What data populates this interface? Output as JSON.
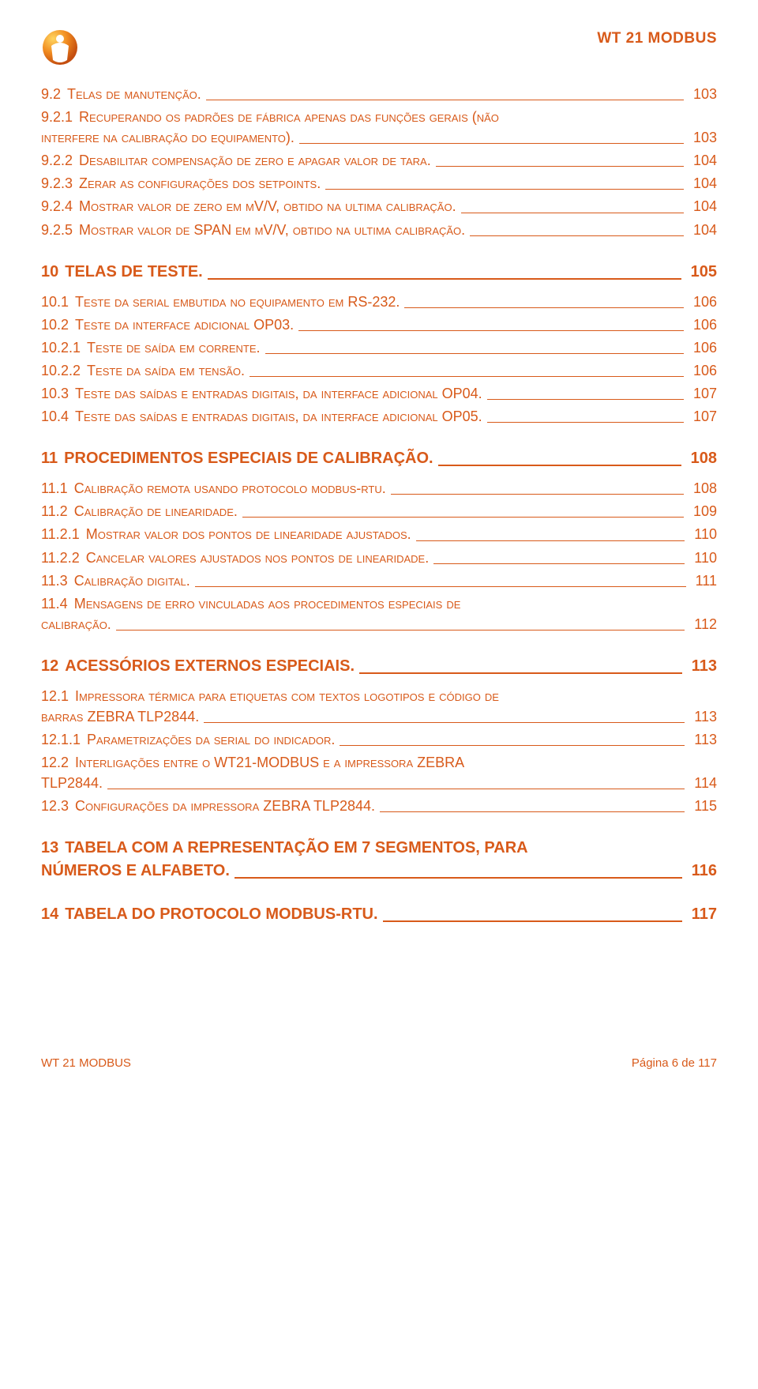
{
  "colors": {
    "accent": "#d85a1a",
    "background": "#ffffff",
    "logo_highlight": "#ffd560",
    "logo_body": "#f08a1f",
    "logo_shadow": "#c44e10"
  },
  "typography": {
    "body_font": "Arial",
    "body_size_pt": 13,
    "section_size_pt": 15,
    "header_size_pt": 14
  },
  "header": {
    "doc_title": "WT 21 MODBUS"
  },
  "toc": [
    {
      "type": "item",
      "num": "9.2",
      "title": "Telas de manutenção.",
      "page": "103"
    },
    {
      "type": "wrap",
      "num": "9.2.1",
      "title_line1": "Recuperando os padrões de fábrica apenas das funções gerais (não",
      "title_line2": "interfere na calibração do equipamento).",
      "page": "103"
    },
    {
      "type": "item",
      "num": "9.2.2",
      "title": "Desabilitar compensação de zero e apagar valor de tara.",
      "page": "104"
    },
    {
      "type": "item",
      "num": "9.2.3",
      "title": "Zerar as configurações dos setpoints.",
      "page": "104"
    },
    {
      "type": "item",
      "num": "9.2.4",
      "title": "Mostrar valor de zero em mV/V, obtido na ultima calibração.",
      "page": "104"
    },
    {
      "type": "item",
      "num": "9.2.5",
      "title": "Mostrar valor de SPAN em mV/V, obtido na ultima calibração.",
      "page": "104"
    },
    {
      "type": "section",
      "num": "10",
      "title": "TELAS DE TESTE.",
      "page": "105"
    },
    {
      "type": "item",
      "num": "10.1",
      "title": "Teste da serial embutida no equipamento em RS-232.",
      "page": "106"
    },
    {
      "type": "item",
      "num": "10.2",
      "title": "Teste da interface adicional OP03.",
      "page": "106"
    },
    {
      "type": "item",
      "num": "10.2.1",
      "title": "Teste de saída em corrente.",
      "page": "106"
    },
    {
      "type": "item",
      "num": "10.2.2",
      "title": "Teste da saída em tensão.",
      "page": "106"
    },
    {
      "type": "item",
      "num": "10.3",
      "title": "Teste das saídas e entradas digitais, da interface adicional OP04.",
      "page": "107"
    },
    {
      "type": "item",
      "num": "10.4",
      "title": "Teste das saídas e entradas digitais, da interface adicional OP05.",
      "page": "107"
    },
    {
      "type": "section",
      "num": "11",
      "title": "PROCEDIMENTOS ESPECIAIS DE CALIBRAÇÃO.",
      "page": "108"
    },
    {
      "type": "item",
      "num": "11.1",
      "title": "Calibração remota usando protocolo modbus-rtu.",
      "page": "108"
    },
    {
      "type": "item",
      "num": "11.2",
      "title": "Calibração de linearidade.",
      "page": "109"
    },
    {
      "type": "item",
      "num": "11.2.1",
      "title": "Mostrar valor dos pontos de linearidade ajustados.",
      "page": "110"
    },
    {
      "type": "item",
      "num": "11.2.2",
      "title": "Cancelar valores ajustados nos pontos de linearidade.",
      "page": "110"
    },
    {
      "type": "item",
      "num": "11.3",
      "title": "Calibração digital.",
      "page": "111"
    },
    {
      "type": "wrap",
      "num": "11.4",
      "title_line1": "Mensagens de erro vinculadas aos procedimentos especiais de",
      "title_line2": "calibração.",
      "page": "112"
    },
    {
      "type": "section",
      "num": "12",
      "title": "ACESSÓRIOS EXTERNOS ESPECIAIS.",
      "page": "113"
    },
    {
      "type": "wrap",
      "num": "12.1",
      "title_line1": "Impressora térmica para etiquetas com textos logotipos e código de",
      "title_line2": "barras ZEBRA TLP2844.",
      "page": "113"
    },
    {
      "type": "item",
      "num": "12.1.1",
      "title": "Parametrizações da serial do indicador.",
      "page": "113"
    },
    {
      "type": "wrap",
      "num": "12.2",
      "title_line1": "Interligações entre o WT21-MODBUS e a impressora ZEBRA",
      "title_line2": "TLP2844.",
      "page": "114"
    },
    {
      "type": "item",
      "num": "12.3",
      "title": "Configurações da impressora ZEBRA TLP2844.",
      "page": "115"
    },
    {
      "type": "section-wrap",
      "num": "13",
      "title_line1": "TABELA COM A REPRESENTAÇÃO EM 7 SEGMENTOS, PARA",
      "title_line2": "NÚMEROS E ALFABETO.",
      "page": "116"
    },
    {
      "type": "section",
      "num": "14",
      "title": "TABELA DO PROTOCOLO MODBUS-RTU.",
      "page": "117"
    }
  ],
  "footer": {
    "left": "WT 21 MODBUS",
    "right": "Página 6 de 117"
  }
}
